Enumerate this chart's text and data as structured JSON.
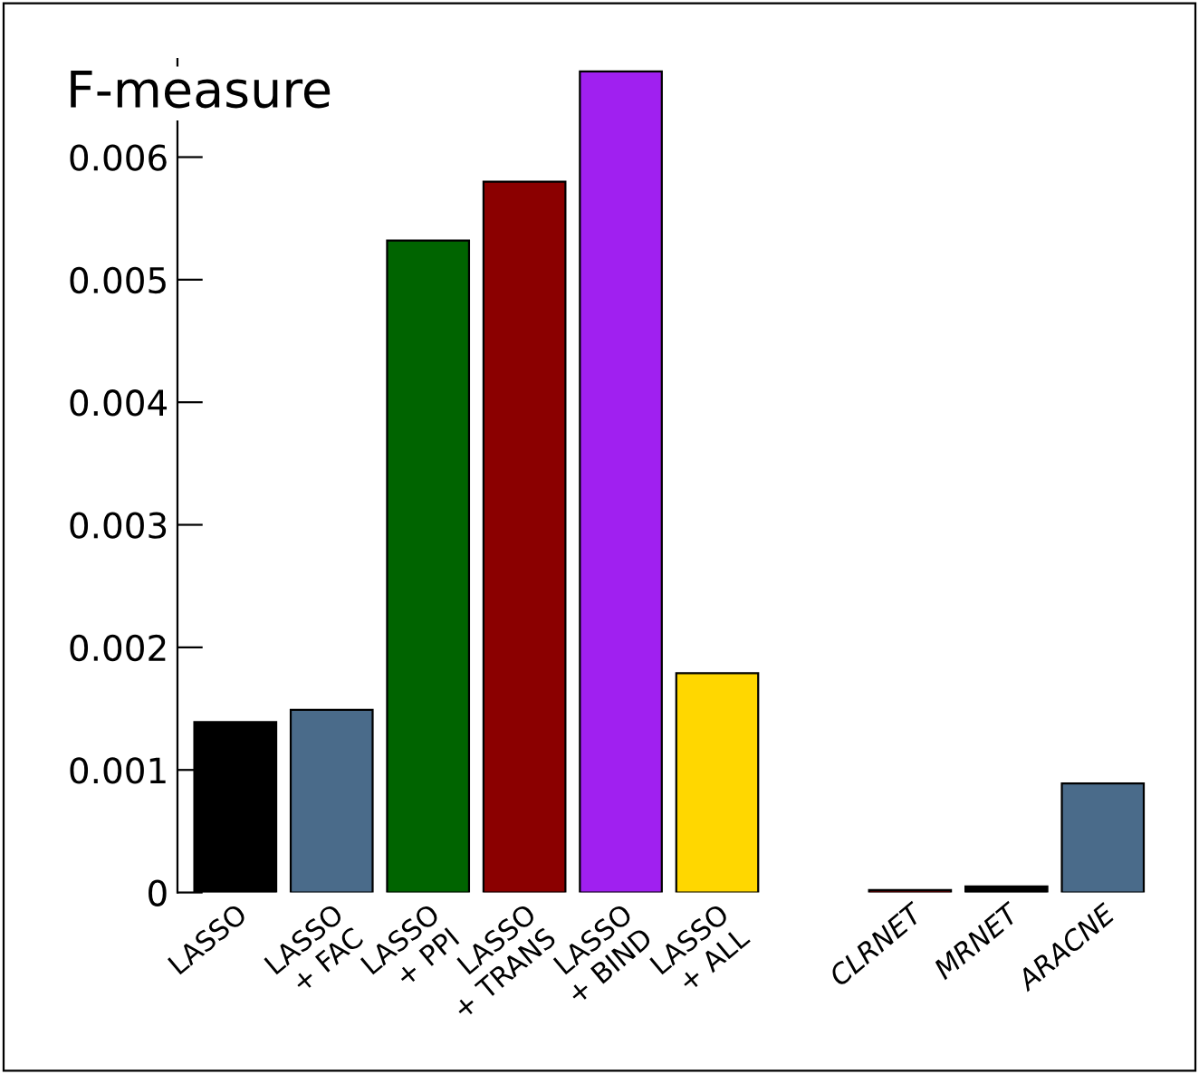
{
  "chart_data": {
    "type": "bar",
    "title": "F-measure",
    "categories": [
      "LASSO",
      "LASSO\n+ FAC",
      "LASSO\n+ PPI",
      "LASSO\n+ TRANS",
      "LASSO\n+ BIND",
      "LASSO\n+ ALL",
      null,
      "CLRNET",
      "MRNET",
      "ARACNE"
    ],
    "values": [
      0.00139,
      0.00149,
      0.00532,
      0.0058,
      0.0067,
      0.00179,
      null,
      2e-05,
      5e-05,
      0.00089
    ],
    "colors": [
      "#000000",
      "#4a6b8a",
      "#006400",
      "#8b0000",
      "#a020f0",
      "#ffd700",
      "#ffffff",
      "#8b0000",
      "#000000",
      "#4a6b8a"
    ],
    "ylim": [
      0,
      0.0068
    ],
    "yticks": [
      0,
      0.001,
      0.002,
      0.003,
      0.004,
      0.005,
      0.006
    ],
    "grid": false
  }
}
